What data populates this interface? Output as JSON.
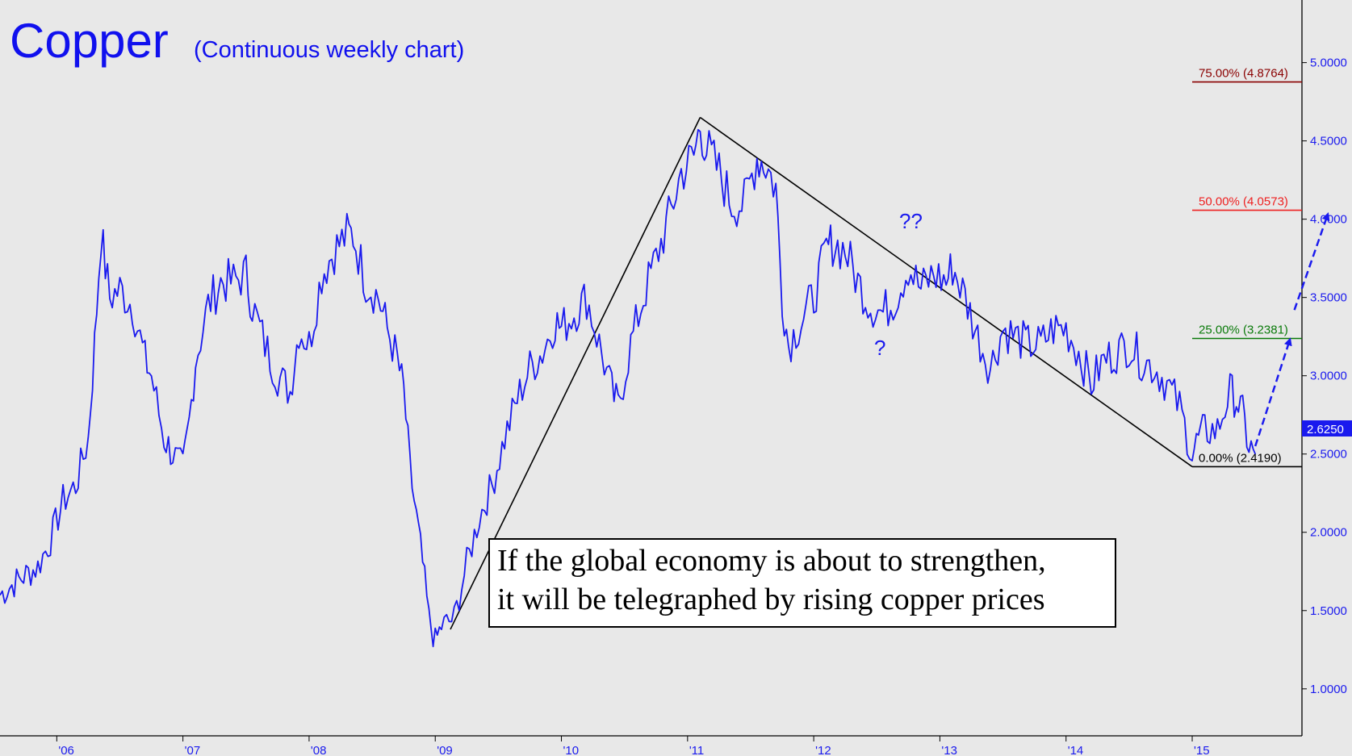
{
  "title": "Copper",
  "subtitle": "(Continuous weekly chart)",
  "chart_data": {
    "type": "line",
    "title": "Copper",
    "subtitle": "(Continuous weekly chart)",
    "ylim": [
      0.7,
      5.4
    ],
    "xlim": [
      2005.55,
      2015.87
    ],
    "y_axis_position": "right",
    "y_ticks": [
      1.0,
      1.5,
      2.0,
      2.5,
      3.0,
      3.5,
      4.0,
      4.5,
      5.0
    ],
    "y_tick_labels": [
      "1.0000",
      "1.5000",
      "2.0000",
      "2.5000",
      "3.0000",
      "3.5000",
      "4.0000",
      "4.5000",
      "5.0000"
    ],
    "x_ticks": [
      2006,
      2007,
      2008,
      2009,
      2010,
      2011,
      2012,
      2013,
      2014,
      2015
    ],
    "x_tick_labels": [
      "'06",
      "'07",
      "'08",
      "'09",
      "'10",
      "'11",
      "'12",
      "'13",
      "'14",
      "'15"
    ],
    "last_price": 2.625,
    "last_price_label": "2.6250",
    "series": [
      {
        "color": "#1a1aee",
        "x": [
          2005.55,
          2005.7,
          2005.85,
          2005.95,
          2006.05,
          2006.15,
          2006.25,
          2006.3,
          2006.35,
          2006.42,
          2006.5,
          2006.6,
          2006.7,
          2006.75,
          2006.85,
          2006.92,
          2007.0,
          2007.05,
          2007.1,
          2007.2,
          2007.3,
          2007.4,
          2007.5,
          2007.55,
          2007.65,
          2007.75,
          2007.85,
          2007.92,
          2008.0,
          2008.1,
          2008.2,
          2008.3,
          2008.35,
          2008.45,
          2008.55,
          2008.62,
          2008.7,
          2008.75,
          2008.8,
          2008.85,
          2008.9,
          2008.95,
          2009.0,
          2009.05,
          2009.15,
          2009.25,
          2009.35,
          2009.45,
          2009.55,
          2009.65,
          2009.75,
          2009.85,
          2009.95,
          2010.0,
          2010.1,
          2010.2,
          2010.3,
          2010.4,
          2010.45,
          2010.55,
          2010.65,
          2010.75,
          2010.85,
          2010.95,
          2011.05,
          2011.1,
          2011.15,
          2011.25,
          2011.35,
          2011.45,
          2011.55,
          2011.62,
          2011.7,
          2011.75,
          2011.8,
          2011.9,
          2012.0,
          2012.1,
          2012.15,
          2012.25,
          2012.35,
          2012.45,
          2012.55,
          2012.65,
          2012.75,
          2012.85,
          2012.95,
          2013.05,
          2013.1,
          2013.2,
          2013.3,
          2013.4,
          2013.5,
          2013.6,
          2013.7,
          2013.8,
          2013.9,
          2014.0,
          2014.1,
          2014.2,
          2014.3,
          2014.4,
          2014.5,
          2014.6,
          2014.7,
          2014.8,
          2014.9,
          2015.0,
          2015.05,
          2015.1,
          2015.2,
          2015.3,
          2015.35,
          2015.4,
          2015.45,
          2015.5
        ],
        "y": [
          1.6,
          1.7,
          1.78,
          1.95,
          2.2,
          2.3,
          2.6,
          3.2,
          3.9,
          3.5,
          3.55,
          3.45,
          3.1,
          3.0,
          2.6,
          2.5,
          2.4,
          2.7,
          3.1,
          3.45,
          3.6,
          3.6,
          3.65,
          3.45,
          3.2,
          3.0,
          2.9,
          3.3,
          3.2,
          3.65,
          3.8,
          3.9,
          3.9,
          3.6,
          3.5,
          3.3,
          3.1,
          2.9,
          2.4,
          2.1,
          1.8,
          1.45,
          1.3,
          1.4,
          1.45,
          1.8,
          2.1,
          2.3,
          2.6,
          2.85,
          3.05,
          3.15,
          3.35,
          3.3,
          3.4,
          3.5,
          3.2,
          2.9,
          2.8,
          3.2,
          3.5,
          3.75,
          4.0,
          4.3,
          4.4,
          4.6,
          4.45,
          4.3,
          4.1,
          4.1,
          4.4,
          4.35,
          4.2,
          3.5,
          3.2,
          3.35,
          3.5,
          3.8,
          3.85,
          3.8,
          3.6,
          3.45,
          3.4,
          3.5,
          3.7,
          3.55,
          3.65,
          3.6,
          3.7,
          3.5,
          3.25,
          3.05,
          3.3,
          3.25,
          3.2,
          3.2,
          3.3,
          3.3,
          3.15,
          2.95,
          3.1,
          3.15,
          3.2,
          3.1,
          3.05,
          2.95,
          2.8,
          2.5,
          2.6,
          2.65,
          2.65,
          2.9,
          2.85,
          2.75,
          2.55,
          2.5
        ]
      }
    ],
    "fib_levels": [
      {
        "label": "75.00% (4.8764)",
        "value": 4.8764,
        "color": "#8a0000"
      },
      {
        "label": "50.00% (4.0573)",
        "value": 4.0573,
        "color": "#ee2020"
      },
      {
        "label": "25.00% (3.2381)",
        "value": 3.2381,
        "color": "#0a7a0a"
      },
      {
        "label": "0.00% (2.4190)",
        "value": 2.419,
        "color": "#000000"
      }
    ],
    "annotations": {
      "question_1": "?",
      "question_2": "??",
      "note_line_1": "If the global economy is about to strengthen,",
      "note_line_2": "it will be telegraphed by rising copper prices"
    }
  }
}
